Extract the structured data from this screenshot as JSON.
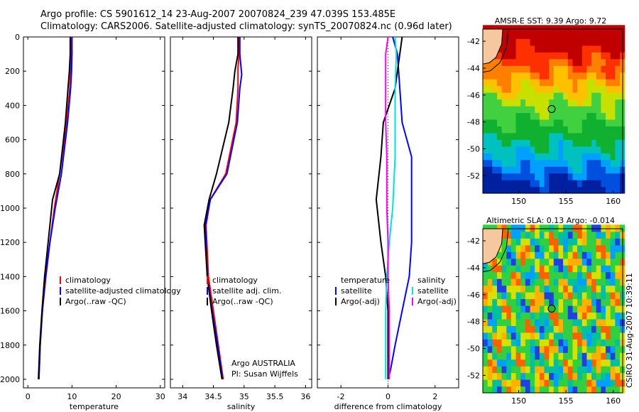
{
  "title_line1": "Argo profile: CS 5901612_14 23-Aug-2007 20070824_239 47.039S 153.485E",
  "title_line2": "Climatology: CARS2006. Satellite-adjusted climatology: synTS_20070824.nc (0.96d later)",
  "side_stamp": "CSIRO 31-Aug-2007 10:39:11",
  "colors": {
    "red": "#ff0000",
    "blue": "#0000ff",
    "black": "#000000",
    "cyan": "#00e0e0",
    "magenta": "#ff00ff"
  },
  "chart_data": [
    {
      "type": "line",
      "xlabel": "temperature",
      "xlim": [
        -1,
        31
      ],
      "ylim": [
        2050,
        0
      ],
      "xticks": [
        0,
        10,
        20,
        30
      ],
      "yticks": [
        0,
        200,
        400,
        600,
        800,
        1000,
        1200,
        1400,
        1600,
        1800,
        2000
      ],
      "legend": [
        "climatology",
        "satellite-adjusted climatology",
        "Argo(..raw -QC)"
      ],
      "series": [
        {
          "name": "climatology",
          "color": "red",
          "x": [
            9.8,
            9.8,
            9.7,
            9.5,
            8.8,
            7.2,
            6.0,
            5.0,
            4.1,
            3.3,
            2.8,
            2.5
          ],
          "y": [
            0,
            100,
            200,
            300,
            500,
            800,
            1000,
            1200,
            1400,
            1600,
            1800,
            2000
          ]
        },
        {
          "name": "satellite-adjusted climatology",
          "color": "blue",
          "x": [
            10.0,
            10.0,
            9.9,
            9.7,
            9.0,
            7.6,
            6.2,
            5.0,
            4.0,
            3.3,
            2.8,
            2.5
          ],
          "y": [
            0,
            100,
            200,
            300,
            500,
            800,
            1000,
            1200,
            1400,
            1600,
            1800,
            2000
          ]
        },
        {
          "name": "Argo(..raw -QC)",
          "color": "black",
          "x": [
            9.6,
            9.6,
            9.4,
            9.1,
            8.5,
            7.2,
            5.6,
            4.6,
            3.8,
            3.2,
            2.7,
            2.4
          ],
          "y": [
            0,
            100,
            200,
            300,
            500,
            800,
            950,
            1200,
            1400,
            1600,
            1800,
            2000
          ]
        }
      ]
    },
    {
      "type": "line",
      "xlabel": "salinity",
      "xlim": [
        33.8,
        36.1
      ],
      "ylim": [
        2050,
        0
      ],
      "xticks": [
        34,
        34.5,
        35,
        35.5,
        36
      ],
      "legend": [
        "climatology",
        "satellite adj. clim.",
        "Argo(..raw -QC)"
      ],
      "annotation": [
        "Argo AUSTRALIA",
        "PI: Susan Wijffels"
      ],
      "series": [
        {
          "name": "climatology",
          "color": "red",
          "x": [
            34.92,
            34.92,
            34.9,
            34.9,
            34.87,
            34.7,
            34.45,
            34.38,
            34.42,
            34.5,
            34.58,
            34.66
          ],
          "y": [
            0,
            100,
            180,
            300,
            500,
            800,
            950,
            1100,
            1400,
            1600,
            1800,
            2000
          ]
        },
        {
          "name": "satellite adj. clim.",
          "color": "blue",
          "x": [
            34.93,
            34.93,
            34.96,
            34.93,
            34.89,
            34.72,
            34.45,
            34.37,
            34.4,
            34.48,
            34.57,
            34.65
          ],
          "y": [
            0,
            100,
            220,
            300,
            500,
            800,
            950,
            1100,
            1400,
            1600,
            1800,
            2000
          ]
        },
        {
          "name": "Argo(..raw -QC)",
          "color": "black",
          "x": [
            34.9,
            34.9,
            34.85,
            34.82,
            34.75,
            34.55,
            34.43,
            34.35,
            34.4,
            34.47,
            34.55,
            34.64
          ],
          "y": [
            0,
            100,
            200,
            300,
            500,
            800,
            950,
            1100,
            1400,
            1600,
            1800,
            2000
          ]
        }
      ]
    },
    {
      "type": "line",
      "xlabel": "difference from climatology",
      "xlim": [
        -3,
        3
      ],
      "ylim": [
        2050,
        0
      ],
      "xticks": [
        -2,
        0,
        2
      ],
      "legend_groups": [
        {
          "head": "temperature",
          "items": [
            "satellite",
            "Argo(-adj)"
          ]
        },
        {
          "head": "salinity",
          "items": [
            "satellite",
            "Argo(-adj)"
          ]
        }
      ],
      "series": [
        {
          "name": "temperature satellite",
          "color": "blue",
          "x": [
            0.2,
            0.4,
            0.5,
            0.6,
            1.0,
            1.0,
            1.0,
            0.9,
            0.6,
            0.3,
            0.1,
            0.0
          ],
          "y": [
            0,
            100,
            300,
            500,
            700,
            1000,
            1200,
            1400,
            1600,
            1800,
            1950,
            2000
          ]
        },
        {
          "name": "temperature Argo(-adj)",
          "color": "black",
          "x": [
            0.6,
            0.5,
            0.3,
            -0.2,
            -0.3,
            -0.5,
            -0.3,
            -0.1,
            0.0,
            0.0,
            0.0,
            0.0
          ],
          "y": [
            0,
            100,
            300,
            500,
            700,
            950,
            1200,
            1400,
            1600,
            1800,
            1950,
            2000
          ]
        },
        {
          "name": "salinity satellite",
          "color": "cyan",
          "x": [
            0.3,
            0.35,
            0.3,
            0.3,
            0.3,
            0.2,
            0.05,
            -0.05,
            -0.1,
            -0.1,
            -0.1,
            -0.1
          ],
          "y": [
            0,
            100,
            300,
            500,
            700,
            1000,
            1200,
            1400,
            1600,
            1800,
            1950,
            2000
          ]
        },
        {
          "name": "salinity Argo(-adj)",
          "color": "magenta",
          "x": [
            0.0,
            -0.1,
            -0.1,
            -0.1,
            -0.05,
            -0.05,
            0.0,
            0.0,
            0.05,
            0.05,
            0.05,
            0.05
          ],
          "y": [
            0,
            100,
            300,
            500,
            700,
            1000,
            1200,
            1400,
            1600,
            1800,
            1950,
            2000
          ]
        }
      ]
    },
    {
      "type": "heatmap",
      "title": "AMSR-E SST: 9.39 Argo: 9.72",
      "xlim": [
        146.2,
        161
      ],
      "ylim": [
        -53.3,
        -41.1
      ],
      "xticks": [
        150,
        155,
        160
      ],
      "yticks": [
        -42,
        -44,
        -46,
        -48,
        -50,
        -52
      ],
      "marker": {
        "lon": 153.485,
        "lat": -47.039
      }
    },
    {
      "type": "heatmap",
      "title": "Altimetric SLA: 0.13 Argo: -0.014",
      "xlim": [
        146.2,
        161
      ],
      "ylim": [
        -53.3,
        -41.1
      ],
      "xticks": [
        150,
        155,
        160
      ],
      "yticks": [
        -42,
        -44,
        -46,
        -48,
        -50,
        -52
      ],
      "marker": {
        "lon": 153.485,
        "lat": -47.039
      }
    }
  ]
}
